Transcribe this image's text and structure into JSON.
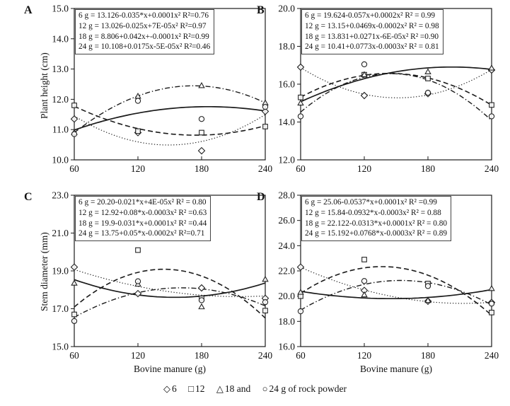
{
  "figure": {
    "legend": {
      "items": [
        {
          "glyph": "◇",
          "marker": "diamond",
          "label": "6"
        },
        {
          "glyph": "□",
          "marker": "square",
          "label": "12"
        },
        {
          "glyph": "△",
          "marker": "triangle",
          "label": "18 and"
        },
        {
          "glyph": "○",
          "marker": "circle",
          "label": "24 g of rock powder"
        }
      ]
    },
    "ink_color": "#1a1a1a"
  },
  "chart_data": [
    {
      "panel": "A",
      "type": "scatter",
      "title": "",
      "xlabel": "",
      "ylabel": "Plant height (cm)",
      "x": [
        60,
        120,
        180,
        240
      ],
      "xtick_labels": [
        "60",
        "120",
        "180",
        "240"
      ],
      "ylim": [
        10,
        15
      ],
      "ytick_labels": [
        "15.0",
        "14.0",
        "13.0",
        "12.0",
        "11.0",
        "10.0"
      ],
      "grid": false,
      "equations": [
        "6 g = 13.126-0.035*x+0.0001x² R²=0.76",
        "12 g = 13.026-0.025x+7E-05x² R²=0.97",
        "18 g = 8.806+0.042x+-0.0001x² R²=0.99",
        "24 g = 10.108+0.0175x-5E-05x² R²=0.46"
      ],
      "series": [
        {
          "name": "6 g",
          "marker": "diamond",
          "line": "dotted",
          "values": [
            11.35,
            10.9,
            10.3,
            11.6
          ]
        },
        {
          "name": "12 g",
          "marker": "square",
          "line": "dashed",
          "values": [
            11.8,
            10.95,
            10.9,
            11.1
          ]
        },
        {
          "name": "18 g",
          "marker": "triangle",
          "line": "dashdot",
          "values": [
            10.9,
            12.1,
            12.45,
            11.88
          ]
        },
        {
          "name": "24 g",
          "marker": "circle",
          "line": "solid",
          "values": [
            10.85,
            11.95,
            11.35,
            11.75
          ]
        }
      ]
    },
    {
      "panel": "B",
      "type": "scatter",
      "title": "",
      "xlabel": "",
      "ylabel": "",
      "x": [
        60,
        120,
        180,
        240
      ],
      "xtick_labels": [
        "60",
        "120",
        "180",
        "240"
      ],
      "ylim": [
        12,
        20
      ],
      "ytick_labels": [
        "20.0",
        "18.0",
        "16.0",
        "14.0",
        "12.0"
      ],
      "grid": false,
      "equations": [
        "6 g = 19.624-0.057x+0.0002x² R² = 0.99",
        "12 g = 13.15+0.0469x-0.0002x² R² = 0.98",
        "18 g = 13.831+0.0271x-6E-05x² R² =0.90",
        "24 g = 10.41+0.0773x-0.0003x²   R² = 0.81"
      ],
      "series": [
        {
          "name": "6 g",
          "marker": "diamond",
          "line": "dotted",
          "values": [
            16.9,
            15.4,
            15.5,
            16.75
          ]
        },
        {
          "name": "12 g",
          "marker": "square",
          "line": "dashed",
          "values": [
            15.3,
            16.5,
            16.3,
            14.9
          ]
        },
        {
          "name": "18 g",
          "marker": "triangle",
          "line": "solid",
          "values": [
            15.0,
            16.5,
            16.65,
            16.85
          ]
        },
        {
          "name": "24 g",
          "marker": "circle",
          "line": "dashdot",
          "values": [
            14.3,
            17.05,
            15.55,
            14.3
          ]
        }
      ]
    },
    {
      "panel": "C",
      "type": "scatter",
      "title": "",
      "xlabel": "Bovine manure (g)",
      "ylabel": "Stem diameter (mm)",
      "x": [
        60,
        120,
        180,
        240
      ],
      "xtick_labels": [
        "60",
        "120",
        "180",
        "240"
      ],
      "ylim": [
        15,
        23
      ],
      "ytick_labels": [
        "23.0",
        "21.0",
        "19.0",
        "17.0",
        "15.0"
      ],
      "grid": false,
      "equations": [
        "6 g  = 20.20-0.021*x+4E-05x² R² = 0.80",
        "12 g = 12.92+0.08*x-0.0003x² R² =0.63",
        "18 g = 19.9-0.031*x+0.0001x² R² =0.44",
        "24 g = 13.75+0.05*x-0.0002x² R²=0.71"
      ],
      "series": [
        {
          "name": "6 g",
          "marker": "diamond",
          "line": "dotted",
          "values": [
            19.2,
            17.8,
            18.1,
            17.55
          ]
        },
        {
          "name": "12 g",
          "marker": "square",
          "line": "dashed",
          "values": [
            16.7,
            20.1,
            17.55,
            16.9
          ]
        },
        {
          "name": "18 g",
          "marker": "triangle",
          "line": "solid",
          "values": [
            18.35,
            18.3,
            17.1,
            18.55
          ]
        },
        {
          "name": "24 g",
          "marker": "circle",
          "line": "dashdot",
          "values": [
            16.35,
            18.45,
            17.45,
            17.35
          ]
        }
      ]
    },
    {
      "panel": "D",
      "type": "scatter",
      "title": "",
      "xlabel": "Bovine manure (g)",
      "ylabel": "",
      "x": [
        60,
        120,
        180,
        240
      ],
      "xtick_labels": [
        "60",
        "120",
        "180",
        "240"
      ],
      "ylim": [
        16,
        28
      ],
      "ytick_labels": [
        "28.0",
        "26.0",
        "24.0",
        "22.0",
        "20.0",
        "18.0",
        "16.0"
      ],
      "grid": false,
      "equations": [
        "6 g  = 25.06-0.0537*x+0.0001x² R² =0.99",
        "12 g = 15.84-0.0932*x-0.0003x² R² = 0.88",
        "18 g = 22.122-0.0313*x+0.0001x² R² = 0.80",
        "24 g = 15.192+0.0768*x-0.0003x² R² = 0.89"
      ],
      "series": [
        {
          "name": "6 g",
          "marker": "diamond",
          "line": "dotted",
          "values": [
            22.3,
            20.45,
            19.6,
            19.5
          ]
        },
        {
          "name": "12 g",
          "marker": "square",
          "line": "dashed",
          "values": [
            20.0,
            22.9,
            21.0,
            18.7
          ]
        },
        {
          "name": "18 g",
          "marker": "triangle",
          "line": "solid",
          "values": [
            20.3,
            20.1,
            19.65,
            20.6
          ]
        },
        {
          "name": "24 g",
          "marker": "circle",
          "line": "dashdot",
          "values": [
            18.8,
            21.2,
            20.8,
            19.4
          ]
        }
      ]
    }
  ]
}
